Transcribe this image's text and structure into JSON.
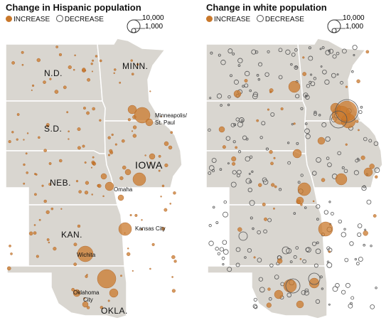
{
  "panels": {
    "hispanic": {
      "title": "Change in Hispanic population",
      "legend_increase": "INCREASE",
      "legend_decrease": "DECREASE",
      "scale_large": "10,000",
      "scale_small": "1,000"
    },
    "white": {
      "title": "Change in white population",
      "legend_increase": "INCREASE",
      "legend_decrease": "DECREASE",
      "scale_large": "10,000",
      "scale_small": "1,000"
    }
  },
  "state_labels": {
    "nd": "N.D.",
    "minn": "MINN.",
    "sd": "S.D.",
    "iowa": "IOWA",
    "neb": "NEB.",
    "kan": "KAN.",
    "okla": "OKLA."
  },
  "city_labels": {
    "minneapolis": "Minneapolis/",
    "stpaul": "St. Paul",
    "omaha": "Omaha",
    "kansas_city": "Kansas City",
    "wichita": "Wichita",
    "oklahoma": "Oklahoma",
    "city": "City"
  },
  "colors": {
    "land": "#d9d6d0",
    "border": "#ffffff",
    "increase": "#c9782b",
    "decrease": "#555555"
  }
}
